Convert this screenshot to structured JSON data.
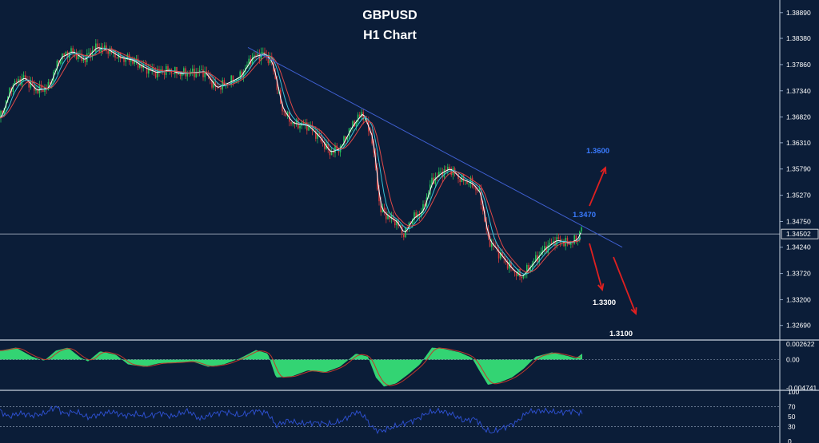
{
  "chart_data": {
    "type": "candlestick",
    "title": "GBPUSD",
    "subtitle": "H1 Chart",
    "price_axis": {
      "ticks": [
        "1.38890",
        "1.38380",
        "1.37860",
        "1.37340",
        "1.36820",
        "1.36310",
        "1.35790",
        "1.35270",
        "1.34750",
        "1.34240",
        "1.33720",
        "1.33200",
        "1.32690"
      ],
      "current_price": "1.34502",
      "ylim": [
        1.324,
        1.3914
      ]
    },
    "price_path": [
      [
        0,
        1.368
      ],
      [
        15,
        1.3745
      ],
      [
        30,
        1.376
      ],
      [
        45,
        1.3735
      ],
      [
        60,
        1.374
      ],
      [
        75,
        1.38
      ],
      [
        90,
        1.3812
      ],
      [
        105,
        1.3795
      ],
      [
        120,
        1.382
      ],
      [
        135,
        1.3815
      ],
      [
        150,
        1.38
      ],
      [
        165,
        1.3795
      ],
      [
        180,
        1.378
      ],
      [
        195,
        1.377
      ],
      [
        210,
        1.3775
      ],
      [
        225,
        1.3768
      ],
      [
        240,
        1.377
      ],
      [
        255,
        1.3772
      ],
      [
        270,
        1.374
      ],
      [
        285,
        1.375
      ],
      [
        300,
        1.3762
      ],
      [
        315,
        1.38
      ],
      [
        330,
        1.3808
      ],
      [
        340,
        1.379
      ],
      [
        352,
        1.37
      ],
      [
        365,
        1.367
      ],
      [
        385,
        1.3665
      ],
      [
        400,
        1.364
      ],
      [
        412,
        1.3612
      ],
      [
        425,
        1.362
      ],
      [
        440,
        1.3665
      ],
      [
        453,
        1.369
      ],
      [
        465,
        1.364
      ],
      [
        475,
        1.35
      ],
      [
        485,
        1.3485
      ],
      [
        495,
        1.3475
      ],
      [
        505,
        1.345
      ],
      [
        515,
        1.348
      ],
      [
        528,
        1.3495
      ],
      [
        540,
        1.3555
      ],
      [
        550,
        1.357
      ],
      [
        562,
        1.358
      ],
      [
        575,
        1.356
      ],
      [
        590,
        1.355
      ],
      [
        600,
        1.353
      ],
      [
        610,
        1.344
      ],
      [
        625,
        1.341
      ],
      [
        640,
        1.338
      ],
      [
        652,
        1.3365
      ],
      [
        665,
        1.339
      ],
      [
        680,
        1.342
      ],
      [
        695,
        1.3438
      ],
      [
        710,
        1.3432
      ],
      [
        722,
        1.344
      ],
      [
        728,
        1.347
      ]
    ],
    "trendline": {
      "from": [
        310,
        1.382
      ],
      "to": [
        778,
        1.3424
      ],
      "color": "#3f5fd0"
    },
    "annotations": [
      {
        "label": "1.3600",
        "color": "#3a7bff",
        "arrow": "up"
      },
      {
        "label": "1.3470",
        "color": "#3a7bff",
        "arrow": "none"
      },
      {
        "label": "1.3300",
        "color": "#ffffff",
        "arrow": "down"
      },
      {
        "label": "1.3100",
        "color": "#ffffff",
        "arrow": "down"
      }
    ],
    "macd": {
      "ticks": [
        "0.002622",
        "0.00",
        "-0.004741"
      ],
      "ylim": [
        -0.005,
        0.003
      ],
      "histogram_color": "#33d473",
      "signal_color": "#c0392b",
      "values": [
        [
          0,
          0.0015
        ],
        [
          20,
          0.002
        ],
        [
          40,
          0.0005
        ],
        [
          55,
          -0.0002
        ],
        [
          70,
          0.0015
        ],
        [
          85,
          0.002
        ],
        [
          100,
          0.0004
        ],
        [
          110,
          -0.0003
        ],
        [
          125,
          0.0014
        ],
        [
          145,
          0.0008
        ],
        [
          160,
          -0.0008
        ],
        [
          180,
          -0.0012
        ],
        [
          200,
          -0.0006
        ],
        [
          220,
          -0.0005
        ],
        [
          240,
          -0.0003
        ],
        [
          260,
          -0.0012
        ],
        [
          280,
          -0.0008
        ],
        [
          300,
          0.0002
        ],
        [
          320,
          0.0016
        ],
        [
          335,
          0.001
        ],
        [
          345,
          -0.003
        ],
        [
          365,
          -0.0028
        ],
        [
          385,
          -0.0018
        ],
        [
          405,
          -0.0022
        ],
        [
          425,
          -0.0012
        ],
        [
          445,
          0.001
        ],
        [
          460,
          0.0005
        ],
        [
          470,
          -0.003
        ],
        [
          480,
          -0.0045
        ],
        [
          495,
          -0.004
        ],
        [
          510,
          -0.0025
        ],
        [
          525,
          -0.0008
        ],
        [
          540,
          0.002
        ],
        [
          555,
          0.0018
        ],
        [
          575,
          0.0012
        ],
        [
          590,
          0.0003
        ],
        [
          600,
          -0.002
        ],
        [
          610,
          -0.0042
        ],
        [
          625,
          -0.0038
        ],
        [
          640,
          -0.003
        ],
        [
          655,
          -0.0015
        ],
        [
          670,
          0.0005
        ],
        [
          690,
          0.0012
        ],
        [
          710,
          0.0006
        ],
        [
          720,
          0.0002
        ],
        [
          728,
          0.001
        ]
      ]
    },
    "rsi": {
      "ticks": [
        "100",
        "70",
        "50",
        "30",
        "0"
      ],
      "ylim": [
        0,
        100
      ],
      "levels": [
        70,
        30
      ],
      "line_color": "#2f52d6",
      "values": [
        [
          0,
          62
        ],
        [
          10,
          50
        ],
        [
          25,
          57
        ],
        [
          40,
          52
        ],
        [
          55,
          56
        ],
        [
          70,
          70
        ],
        [
          80,
          56
        ],
        [
          95,
          60
        ],
        [
          110,
          48
        ],
        [
          125,
          55
        ],
        [
          140,
          60
        ],
        [
          155,
          52
        ],
        [
          170,
          55
        ],
        [
          185,
          50
        ],
        [
          200,
          58
        ],
        [
          215,
          50
        ],
        [
          235,
          62
        ],
        [
          250,
          45
        ],
        [
          265,
          55
        ],
        [
          280,
          60
        ],
        [
          300,
          52
        ],
        [
          320,
          62
        ],
        [
          335,
          57
        ],
        [
          345,
          32
        ],
        [
          360,
          42
        ],
        [
          375,
          36
        ],
        [
          395,
          38
        ],
        [
          415,
          35
        ],
        [
          430,
          44
        ],
        [
          445,
          60
        ],
        [
          455,
          52
        ],
        [
          465,
          28
        ],
        [
          475,
          20
        ],
        [
          490,
          28
        ],
        [
          505,
          36
        ],
        [
          520,
          44
        ],
        [
          535,
          58
        ],
        [
          550,
          62
        ],
        [
          565,
          55
        ],
        [
          580,
          42
        ],
        [
          595,
          46
        ],
        [
          605,
          25
        ],
        [
          615,
          18
        ],
        [
          630,
          28
        ],
        [
          645,
          38
        ],
        [
          660,
          60
        ],
        [
          680,
          62
        ],
        [
          700,
          58
        ],
        [
          715,
          62
        ],
        [
          728,
          56
        ]
      ]
    }
  }
}
